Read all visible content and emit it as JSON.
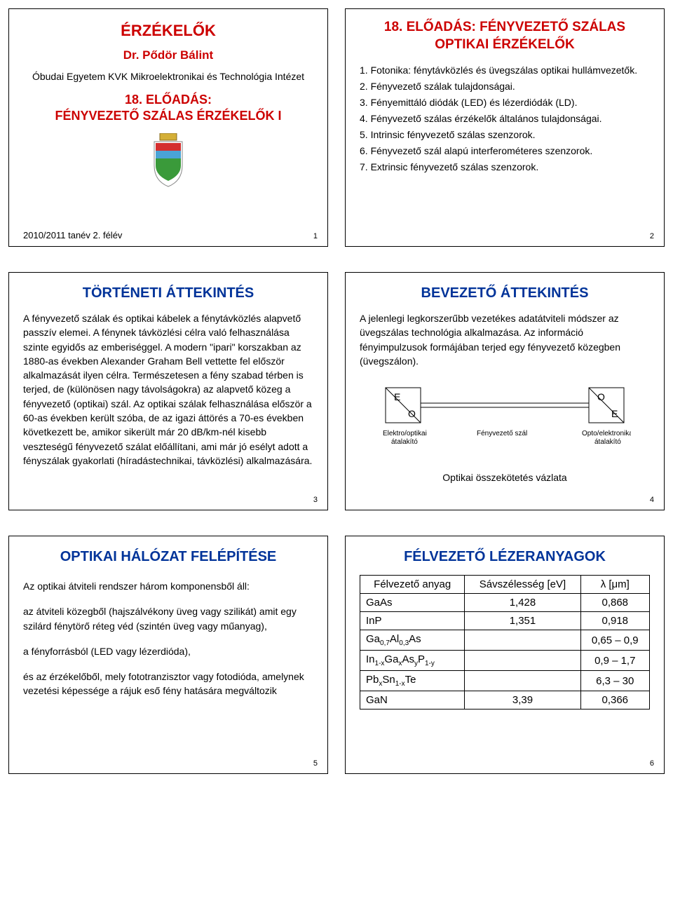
{
  "colors": {
    "red": "#cc0000",
    "blue": "#003399",
    "black": "#000000",
    "bg": "#ffffff"
  },
  "typography": {
    "title_fontsize": 22,
    "subtitle_fontsize": 18,
    "body_fontsize": 14,
    "font_family": "Arial"
  },
  "slide1": {
    "title": "ÉRZÉKELŐK",
    "author": "Dr. Pődör Bálint",
    "affiliation": "Óbudai Egyetem KVK Mikroelektronikai és Technológia Intézet",
    "subtitle_line1": "18. ELŐADÁS:",
    "subtitle_line2": "FÉNYVEZETŐ SZÁLAS ÉRZÉKELŐK I",
    "footer": "2010/2011 tanév 2. félév",
    "page": "1"
  },
  "slide2": {
    "title_line1": "18. ELŐADÁS: FÉNYVEZETŐ SZÁLAS",
    "title_line2": "OPTIKAI ÉRZÉKELŐK",
    "items": [
      "1. Fotonika: fénytávközlés és üvegszálas optikai hullámvezetők.",
      "2. Fényvezető szálak tulajdonságai.",
      "3. Fényemittáló diódák (LED) és lézerdiódák (LD).",
      "4. Fényvezető szálas érzékelők általános tulajdonságai.",
      "5. Intrinsic fényvezető szálas szenzorok.",
      "6. Fényvezető szál alapú interferométeres szenzorok.",
      "7. Extrinsic fényvezető szálas szenzorok."
    ],
    "page": "2"
  },
  "slide3": {
    "title": "TÖRTÉNETI ÁTTEKINTÉS",
    "body": "A fényvezető szálak és optikai kábelek a fénytávközlés alapvető passzív elemei. A fénynek távközlési célra való felhasználása szinte egyidős az emberiséggel. A modern \"ipari\" korszakban az 1880-as években Alexander Graham Bell vettette fel először alkalmazását ilyen célra. Természetesen a fény szabad térben is terjed, de (különösen nagy távolságokra) az alapvető közeg a fényvezető (optikai) szál. Az optikai szálak felhasználása először a 60-as években került szóba, de az igazi áttörés a 70-es években következett be, amikor sikerült már 20 dB/km-nél kisebb veszteségű fényvezető szálat előállítani, ami már jó esélyt adott a fényszálak gyakorlati (híradástechnikai, távközlési) alkalmazására.",
    "page": "3"
  },
  "slide4": {
    "title": "BEVEZETŐ ÁTTEKINTÉS",
    "body": "A jelenlegi legkorszerűbb vezetékes adatátviteli módszer az üvegszálas technológia alkalmazása. Az információ fényimpulzusok formájában terjed egy fényvezető közegben (üvegszálon).",
    "diagram": {
      "left_top": "E",
      "left_bottom": "O",
      "left_label": "Elektro/optikai átalakító",
      "mid_label": "Fényvezető szál",
      "right_top": "O",
      "right_bottom": "E",
      "right_label": "Opto/elektronikai átalakító"
    },
    "caption": "Optikai összekötetés vázlata",
    "page": "4"
  },
  "slide5": {
    "title": "OPTIKAI HÁLÓZAT FELÉPÍTÉSE",
    "intro": "Az optikai átviteli rendszer három komponensből áll:",
    "p1": "az átviteli közegből (hajszálvékony üveg vagy szilikát) amit egy szilárd fénytörő réteg véd (szintén üveg vagy műanyag),",
    "p2": "a fényforrásból (LED vagy lézerdióda),",
    "p3": "és az érzékelőből, mely fototranzisztor vagy fotodióda, amelynek vezetési képessége a rájuk eső fény hatására megváltozik",
    "page": "5"
  },
  "slide6": {
    "title": "FÉLVEZETŐ LÉZERANYAGOK",
    "table": {
      "headers": [
        "Félvezető anyag",
        "Sávszélesség [eV]",
        "λ [μm]"
      ],
      "rows": [
        {
          "c0": "GaAs",
          "c1": "1,428",
          "c2": "0,868"
        },
        {
          "c0": "InP",
          "c1": "1,351",
          "c2": "0,918"
        },
        {
          "c0_html": "Ga<span class='sub'>0,7</span>Al<span class='sub'>0,3</span>As",
          "c1": "",
          "c2": "0,65 – 0,9"
        },
        {
          "c0_html": "In<span class='sub'>1-x</span>Ga<span class='sub'>x</span>As<span class='sub'>y</span>P<span class='sub'>1-y</span>",
          "c1": "",
          "c2": "0,9 – 1,7"
        },
        {
          "c0_html": "Pb<span class='sub'>x</span>Sn<span class='sub'>1-x</span>Te",
          "c1": "",
          "c2": "6,3 – 30"
        },
        {
          "c0": "GaN",
          "c1": "3,39",
          "c2": "0,366"
        }
      ]
    },
    "page": "6"
  }
}
